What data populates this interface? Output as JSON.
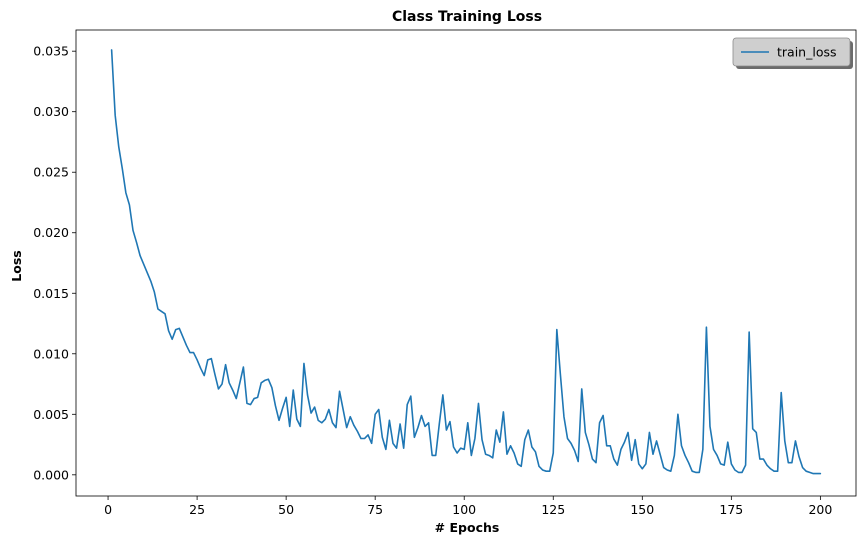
{
  "chart_data": {
    "type": "line",
    "title": "Class Training Loss",
    "xlabel": "# Epochs",
    "ylabel": "Loss",
    "xlim": [
      -9,
      210
    ],
    "ylim": [
      -0.00175,
      0.03675
    ],
    "xticks": [
      0,
      25,
      50,
      75,
      100,
      125,
      150,
      175,
      200
    ],
    "xtick_labels": [
      "0",
      "25",
      "50",
      "75",
      "100",
      "125",
      "150",
      "175",
      "200"
    ],
    "yticks": [
      0.0,
      0.005,
      0.01,
      0.015,
      0.02,
      0.025,
      0.03,
      0.035
    ],
    "ytick_labels": [
      "0.000",
      "0.005",
      "0.010",
      "0.015",
      "0.020",
      "0.025",
      "0.030",
      "0.035"
    ],
    "grid": false,
    "legend": "top-right",
    "series": [
      {
        "name": "train_loss",
        "color": "#1f77b4",
        "x": [
          1,
          2,
          3,
          4,
          5,
          6,
          7,
          8,
          9,
          10,
          11,
          12,
          13,
          14,
          15,
          16,
          17,
          18,
          19,
          20,
          21,
          22,
          23,
          24,
          25,
          26,
          27,
          28,
          29,
          30,
          31,
          32,
          33,
          34,
          35,
          36,
          37,
          38,
          39,
          40,
          41,
          42,
          43,
          44,
          45,
          46,
          47,
          48,
          49,
          50,
          51,
          52,
          53,
          54,
          55,
          56,
          57,
          58,
          59,
          60,
          61,
          62,
          63,
          64,
          65,
          66,
          67,
          68,
          69,
          70,
          71,
          72,
          73,
          74,
          75,
          76,
          77,
          78,
          79,
          80,
          81,
          82,
          83,
          84,
          85,
          86,
          87,
          88,
          89,
          90,
          91,
          92,
          93,
          94,
          95,
          96,
          97,
          98,
          99,
          100,
          101,
          102,
          103,
          104,
          105,
          106,
          107,
          108,
          109,
          110,
          111,
          112,
          113,
          114,
          115,
          116,
          117,
          118,
          119,
          120,
          121,
          122,
          123,
          124,
          125,
          126,
          127,
          128,
          129,
          130,
          131,
          132,
          133,
          134,
          135,
          136,
          137,
          138,
          139,
          140,
          141,
          142,
          143,
          144,
          145,
          146,
          147,
          148,
          149,
          150,
          151,
          152,
          153,
          154,
          155,
          156,
          157,
          158,
          159,
          160,
          161,
          162,
          163,
          164,
          165,
          166,
          167,
          168,
          169,
          170,
          171,
          172,
          173,
          174,
          175,
          176,
          177,
          178,
          179,
          180,
          181,
          182,
          183,
          184,
          185,
          186,
          187,
          188,
          189,
          190,
          191,
          192,
          193,
          194,
          195,
          196,
          197,
          198,
          199,
          200
        ],
        "y": [
          0.0351,
          0.0297,
          0.0271,
          0.0253,
          0.0233,
          0.0223,
          0.0202,
          0.0192,
          0.0181,
          0.0174,
          0.0167,
          0.016,
          0.0151,
          0.0137,
          0.0135,
          0.0133,
          0.0119,
          0.0112,
          0.012,
          0.0121,
          0.0114,
          0.0107,
          0.0101,
          0.0101,
          0.0095,
          0.0088,
          0.0082,
          0.0095,
          0.0096,
          0.0083,
          0.0071,
          0.0075,
          0.0091,
          0.0076,
          0.007,
          0.0063,
          0.0076,
          0.0089,
          0.0059,
          0.0058,
          0.0063,
          0.0064,
          0.0076,
          0.0078,
          0.0079,
          0.0072,
          0.0057,
          0.0045,
          0.0055,
          0.0064,
          0.004,
          0.007,
          0.0046,
          0.004,
          0.0092,
          0.0066,
          0.0051,
          0.0056,
          0.0045,
          0.0043,
          0.0046,
          0.0054,
          0.0043,
          0.0039,
          0.0069,
          0.0054,
          0.0039,
          0.0048,
          0.0041,
          0.0036,
          0.003,
          0.003,
          0.0033,
          0.0026,
          0.005,
          0.0054,
          0.0031,
          0.0021,
          0.0045,
          0.0026,
          0.0022,
          0.0042,
          0.0022,
          0.0058,
          0.0065,
          0.0031,
          0.0039,
          0.0049,
          0.004,
          0.0043,
          0.0016,
          0.0016,
          0.0042,
          0.0066,
          0.0037,
          0.0044,
          0.0023,
          0.0018,
          0.0022,
          0.0021,
          0.0043,
          0.0016,
          0.003,
          0.0059,
          0.0029,
          0.0017,
          0.0016,
          0.0014,
          0.0037,
          0.0027,
          0.0052,
          0.0017,
          0.0024,
          0.0018,
          0.0009,
          0.0007,
          0.0029,
          0.0037,
          0.0023,
          0.0019,
          0.0007,
          0.0004,
          0.0003,
          0.0003,
          0.0018,
          0.012,
          0.0083,
          0.0048,
          0.003,
          0.0026,
          0.002,
          0.0011,
          0.0071,
          0.0035,
          0.0025,
          0.0013,
          0.001,
          0.0043,
          0.0049,
          0.0024,
          0.0024,
          0.0013,
          0.0008,
          0.0021,
          0.0027,
          0.0035,
          0.0012,
          0.0029,
          0.0009,
          0.0005,
          0.0009,
          0.0035,
          0.0017,
          0.0028,
          0.0017,
          0.0006,
          0.0004,
          0.0003,
          0.0016,
          0.005,
          0.0024,
          0.0016,
          0.001,
          0.0003,
          0.0002,
          0.0002,
          0.0021,
          0.0122,
          0.004,
          0.0021,
          0.0016,
          0.0009,
          0.0008,
          0.0027,
          0.0009,
          0.0004,
          0.0002,
          0.0002,
          0.0008,
          0.0118,
          0.0038,
          0.0035,
          0.0013,
          0.0013,
          0.0008,
          0.0005,
          0.0003,
          0.0003,
          0.0068,
          0.0028,
          0.001,
          0.001,
          0.0028,
          0.0015,
          0.0006,
          0.0003,
          0.0002,
          0.0001,
          0.0001,
          0.0001
        ]
      }
    ]
  }
}
